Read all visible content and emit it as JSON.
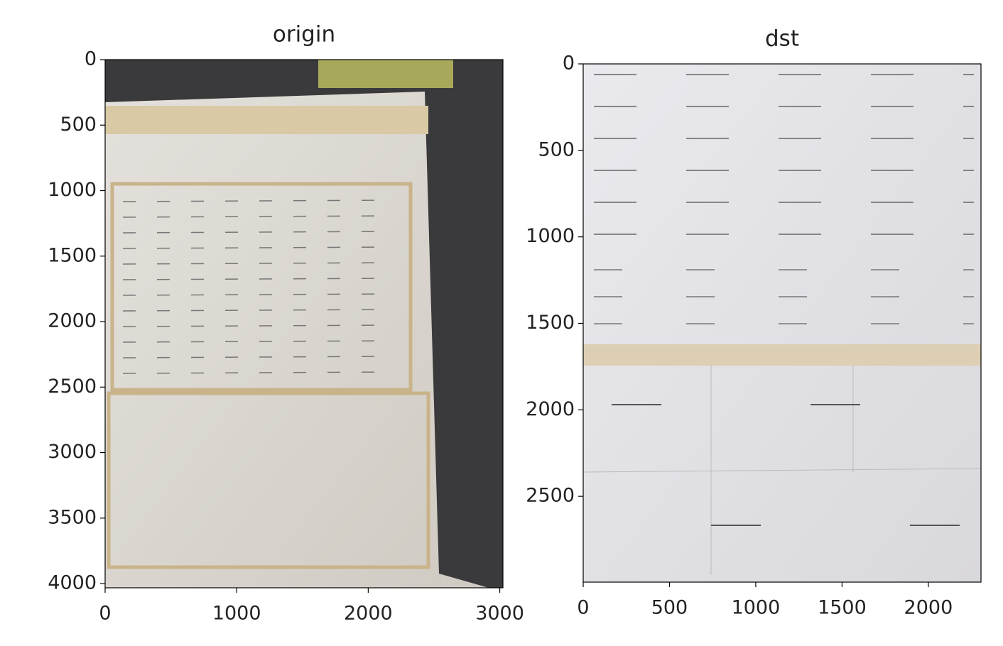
{
  "chart_data": [
    {
      "type": "image",
      "title": "origin",
      "xlim": [
        0,
        3024
      ],
      "xticks": [
        0,
        1000,
        2000,
        3000
      ],
      "ylim": [
        4032,
        0
      ],
      "yticks": [
        0,
        500,
        1000,
        1500,
        2000,
        2500,
        3000,
        3500,
        4000
      ]
    },
    {
      "type": "image",
      "title": "dst",
      "xlim": [
        0,
        2305
      ],
      "xticks": [
        0,
        500,
        1000,
        1500,
        2000
      ],
      "ylim": [
        2996,
        0
      ],
      "yticks": [
        0,
        500,
        1000,
        1500,
        2000,
        2500
      ]
    }
  ]
}
